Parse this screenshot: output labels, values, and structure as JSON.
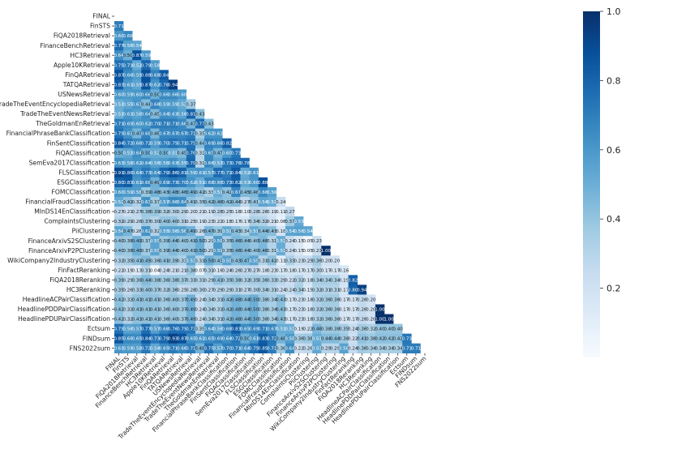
{
  "chart_data": {
    "type": "heatmap",
    "labels": [
      "FINAL",
      "FinSTS",
      "FiQA2018Retrieval",
      "FinanceBenchRetrieval",
      "HC3Retrieval",
      "Apple10KRetrieval",
      "FinQARetrieval",
      "TATQARetrieval",
      "USNewsRetrieval",
      "TradeTheEventEncyclopediaRetrieval",
      "TradeTheEventNewsRetrieval",
      "TheGoldmanEnRetrieval",
      "FinancialPhraseBankClassification",
      "FinSentClassification",
      "FiQAClassification",
      "SemEva2017Classification",
      "FLSClassification",
      "ESGClassification",
      "FOMCClassification",
      "FinancialFraudClassification",
      "MInDS14EnClassification",
      "ComplaintsClustering",
      "PiiClustering",
      "FinanceArxivS2SClustering",
      "FinanceArxivP2PClustering",
      "WikiCompany2IndustryClustering",
      "FinFactReranking",
      "FiQA2018Reranking",
      "HC3Reranking",
      "HeadlineACPairClassification",
      "HeadlinePDDPairClassification",
      "HeadlinePDUPairClassification",
      "Ectsum",
      "FINDsum",
      "FNS2022sum"
    ],
    "values": [
      [],
      [
        0.71
      ],
      [
        0.6,
        0.66
      ],
      [
        0.77,
        0.56,
        0.54
      ],
      [
        0.64,
        0.5,
        0.87,
        0.59
      ],
      [
        0.75,
        0.71,
        0.52,
        0.79,
        0.58
      ],
      [
        0.87,
        0.66,
        0.59,
        0.88,
        0.68,
        0.84
      ],
      [
        0.83,
        0.61,
        0.55,
        0.87,
        0.62,
        0.78,
        0.94
      ],
      [
        0.6,
        0.59,
        0.6,
        0.66,
        0.5,
        0.66,
        0.66,
        0.6
      ],
      [
        0.51,
        0.55,
        0.61,
        0.44,
        0.68,
        0.59,
        0.59,
        0.52,
        0.37
      ],
      [
        0.51,
        0.61,
        0.56,
        0.64,
        0.45,
        0.64,
        0.63,
        0.56,
        0.81,
        0.43
      ],
      [
        0.71,
        0.65,
        0.6,
        0.62,
        0.7,
        0.71,
        0.71,
        0.66,
        0.47,
        0.77,
        0.43
      ],
      [
        0.75,
        0.63,
        0.47,
        0.68,
        0.46,
        0.67,
        0.67,
        0.67,
        0.71,
        0.35,
        0.62,
        0.62
      ],
      [
        0.84,
        0.72,
        0.66,
        0.72,
        0.59,
        0.7,
        0.75,
        0.71,
        0.75,
        0.44,
        0.69,
        0.66,
        0.82
      ],
      [
        0.5,
        0.53,
        0.64,
        0.5,
        0.52,
        0.5,
        0.51,
        0.45,
        0.76,
        0.31,
        0.65,
        0.47,
        0.6,
        0.73
      ],
      [
        0.63,
        0.58,
        0.62,
        0.64,
        0.56,
        0.58,
        0.63,
        0.55,
        0.79,
        0.31,
        0.66,
        0.53,
        0.73,
        0.76,
        0.78
      ],
      [
        0.91,
        0.86,
        0.64,
        0.73,
        0.64,
        0.79,
        0.86,
        0.81,
        0.59,
        0.61,
        0.57,
        0.77,
        0.71,
        0.84,
        0.52,
        0.61
      ],
      [
        0.8,
        0.83,
        0.61,
        0.68,
        0.49,
        0.69,
        0.73,
        0.7,
        0.62,
        0.51,
        0.68,
        0.66,
        0.73,
        0.82,
        0.53,
        0.6,
        0.88
      ],
      [
        0.6,
        0.59,
        0.58,
        0.39,
        0.48,
        0.43,
        0.48,
        0.46,
        0.49,
        0.42,
        0.33,
        0.51,
        0.42,
        0.67,
        0.45,
        0.46,
        0.66,
        0.56
      ],
      [
        0.52,
        0.42,
        0.32,
        0.63,
        0.37,
        0.57,
        0.66,
        0.64,
        0.41,
        0.35,
        0.42,
        0.46,
        0.42,
        0.44,
        0.27,
        0.41,
        0.54,
        0.51,
        0.24
      ],
      [
        0.27,
        0.21,
        0.27,
        0.38,
        0.39,
        0.32,
        0.3,
        0.29,
        0.2,
        0.21,
        0.19,
        0.28,
        0.25,
        0.18,
        0.1,
        0.28,
        0.26,
        0.19,
        0.11,
        0.27
      ],
      [
        0.32,
        0.29,
        0.26,
        0.37,
        0.3,
        0.4,
        0.4,
        0.31,
        0.25,
        0.19,
        0.23,
        0.22,
        0.18,
        0.17,
        0.17,
        0.34,
        0.32,
        0.21,
        0.08,
        0.37,
        0.53
      ],
      [
        0.54,
        0.47,
        0.26,
        0.62,
        0.32,
        0.55,
        0.56,
        0.56,
        0.49,
        0.26,
        0.47,
        0.39,
        0.52,
        0.43,
        0.34,
        0.51,
        0.44,
        0.43,
        0.18,
        0.54,
        0.56,
        0.54
      ],
      [
        0.4,
        0.38,
        0.49,
        0.37,
        0.55,
        0.39,
        0.44,
        0.4,
        0.41,
        0.5,
        0.29,
        0.59,
        0.35,
        0.46,
        0.44,
        0.4,
        0.46,
        0.31,
        0.51,
        0.24,
        0.15,
        0.05,
        0.23
      ],
      [
        0.4,
        0.38,
        0.49,
        0.37,
        0.55,
        0.39,
        0.44,
        0.4,
        0.41,
        0.5,
        0.29,
        0.59,
        0.35,
        0.46,
        0.44,
        0.4,
        0.46,
        0.31,
        0.51,
        0.24,
        0.15,
        0.05,
        0.23,
        1.0
      ],
      [
        0.32,
        0.35,
        0.41,
        0.45,
        0.36,
        0.41,
        0.39,
        0.33,
        0.53,
        0.31,
        0.5,
        0.43,
        0.55,
        0.43,
        0.47,
        0.55,
        0.31,
        0.42,
        0.11,
        0.33,
        0.23,
        0.25,
        0.36,
        0.2,
        0.2
      ],
      [
        0.22,
        0.19,
        0.13,
        0.31,
        0.04,
        0.24,
        0.21,
        0.21,
        0.38,
        0.07,
        0.31,
        0.16,
        0.24,
        0.26,
        0.27,
        0.27,
        0.18,
        0.23,
        0.17,
        0.18,
        0.17,
        0.17,
        0.3,
        0.17,
        0.17,
        0.16
      ],
      [
        0.39,
        0.29,
        0.36,
        0.44,
        0.38,
        0.36,
        0.38,
        0.37,
        0.33,
        0.31,
        0.29,
        0.41,
        0.35,
        0.38,
        0.32,
        0.35,
        0.36,
        0.33,
        0.29,
        0.22,
        0.32,
        0.18,
        0.34,
        0.34,
        0.34,
        0.19,
        0.82
      ],
      [
        0.35,
        0.26,
        0.33,
        0.4,
        0.37,
        0.32,
        0.36,
        0.25,
        0.28,
        0.3,
        0.27,
        0.29,
        0.29,
        0.31,
        0.27,
        0.3,
        0.34,
        0.31,
        0.24,
        0.24,
        0.34,
        0.15,
        0.32,
        0.31,
        0.31,
        0.17,
        0.8,
        0.94
      ],
      [
        0.42,
        0.32,
        0.41,
        0.41,
        0.41,
        0.36,
        0.4,
        0.37,
        0.49,
        0.24,
        0.34,
        0.31,
        0.42,
        0.48,
        0.44,
        0.5,
        0.38,
        0.34,
        0.43,
        0.17,
        0.23,
        0.18,
        0.32,
        0.36,
        0.36,
        0.17,
        0.17,
        0.26,
        0.2
      ],
      [
        0.42,
        0.32,
        0.41,
        0.41,
        0.41,
        0.36,
        0.4,
        0.37,
        0.49,
        0.24,
        0.34,
        0.31,
        0.42,
        0.48,
        0.44,
        0.5,
        0.38,
        0.34,
        0.43,
        0.17,
        0.23,
        0.18,
        0.32,
        0.36,
        0.36,
        0.17,
        0.17,
        0.26,
        0.2,
        1.0
      ],
      [
        0.42,
        0.32,
        0.41,
        0.41,
        0.41,
        0.36,
        0.4,
        0.37,
        0.49,
        0.24,
        0.34,
        0.31,
        0.42,
        0.48,
        0.44,
        0.5,
        0.38,
        0.34,
        0.43,
        0.17,
        0.23,
        0.18,
        0.32,
        0.36,
        0.36,
        0.17,
        0.17,
        0.26,
        0.2,
        1.0,
        1.0
      ],
      [
        0.75,
        0.56,
        0.57,
        0.77,
        0.57,
        0.68,
        0.76,
        0.75,
        0.73,
        0.35,
        0.64,
        0.56,
        0.68,
        0.83,
        0.65,
        0.69,
        0.71,
        0.67,
        0.51,
        0.51,
        0.19,
        0.22,
        0.46,
        0.38,
        0.38,
        0.35,
        0.24,
        0.36,
        0.32,
        0.4,
        0.4,
        0.4
      ],
      [
        0.85,
        0.66,
        0.65,
        0.84,
        0.73,
        0.79,
        0.93,
        0.87,
        0.65,
        0.61,
        0.65,
        0.69,
        0.64,
        0.72,
        0.5,
        0.61,
        0.83,
        0.72,
        0.48,
        0.58,
        0.36,
        0.38,
        0.51,
        0.44,
        0.44,
        0.38,
        0.22,
        0.41,
        0.38,
        0.42,
        0.42,
        0.42,
        0.73
      ],
      [
        0.61,
        0.59,
        0.58,
        0.72,
        0.54,
        0.65,
        0.71,
        0.66,
        0.71,
        0.48,
        0.75,
        0.57,
        0.7,
        0.71,
        0.64,
        0.75,
        0.85,
        0.71,
        0.36,
        0.64,
        0.22,
        0.26,
        0.53,
        0.29,
        0.29,
        0.56,
        0.24,
        0.36,
        0.34,
        0.34,
        0.34,
        0.34,
        0.71,
        0.71
      ]
    ],
    "colorbar": {
      "min": 0,
      "max": 1.0,
      "ticks": [
        "0.2",
        "0.4",
        "0.6",
        "0.8",
        "1.0"
      ],
      "tick_values": [
        0.2,
        0.4,
        0.6,
        0.8,
        1.0
      ]
    },
    "colormap": "Blues",
    "mask": "upper-triangle"
  }
}
